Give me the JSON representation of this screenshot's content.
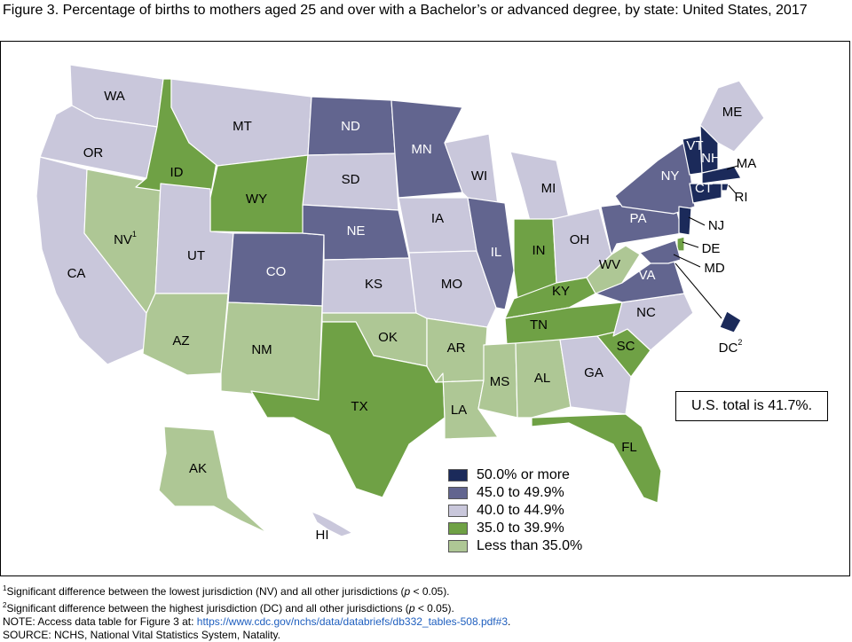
{
  "title": "Figure 3. Percentage of births to mothers aged 25 and over with a Bachelor’s or advanced degree, by state: United States, 2017",
  "colors": {
    "50_plus": "#1b2a5a",
    "45_49": "#62658f",
    "40_44": "#c9c7db",
    "35_39": "#6fa145",
    "lt_35": "#aec795"
  },
  "legend": [
    {
      "key": "50_plus",
      "label": "50.0% or more"
    },
    {
      "key": "45_49",
      "label": "45.0 to 49.9%"
    },
    {
      "key": "40_44",
      "label": "40.0 to 44.9%"
    },
    {
      "key": "35_39",
      "label": "35.0 to 39.9%"
    },
    {
      "key": "lt_35",
      "label": "Less than 35.0%"
    }
  ],
  "total_note": "U.S. total is 41.7%.",
  "states": [
    {
      "abbr": "WA",
      "category": "40_44"
    },
    {
      "abbr": "OR",
      "category": "40_44"
    },
    {
      "abbr": "CA",
      "category": "40_44"
    },
    {
      "abbr": "NV",
      "category": "lt_35",
      "footnote": "1"
    },
    {
      "abbr": "ID",
      "category": "35_39"
    },
    {
      "abbr": "MT",
      "category": "40_44"
    },
    {
      "abbr": "WY",
      "category": "35_39"
    },
    {
      "abbr": "UT",
      "category": "40_44"
    },
    {
      "abbr": "AZ",
      "category": "lt_35"
    },
    {
      "abbr": "CO",
      "category": "45_49"
    },
    {
      "abbr": "NM",
      "category": "lt_35"
    },
    {
      "abbr": "ND",
      "category": "45_49"
    },
    {
      "abbr": "SD",
      "category": "40_44"
    },
    {
      "abbr": "NE",
      "category": "45_49"
    },
    {
      "abbr": "KS",
      "category": "40_44"
    },
    {
      "abbr": "OK",
      "category": "lt_35"
    },
    {
      "abbr": "TX",
      "category": "35_39"
    },
    {
      "abbr": "MN",
      "category": "45_49"
    },
    {
      "abbr": "IA",
      "category": "40_44"
    },
    {
      "abbr": "MO",
      "category": "40_44"
    },
    {
      "abbr": "AR",
      "category": "lt_35"
    },
    {
      "abbr": "LA",
      "category": "lt_35"
    },
    {
      "abbr": "WI",
      "category": "40_44"
    },
    {
      "abbr": "IL",
      "category": "45_49"
    },
    {
      "abbr": "MI",
      "category": "40_44"
    },
    {
      "abbr": "IN",
      "category": "35_39"
    },
    {
      "abbr": "OH",
      "category": "40_44"
    },
    {
      "abbr": "KY",
      "category": "35_39"
    },
    {
      "abbr": "TN",
      "category": "35_39"
    },
    {
      "abbr": "MS",
      "category": "lt_35"
    },
    {
      "abbr": "AL",
      "category": "lt_35"
    },
    {
      "abbr": "GA",
      "category": "40_44"
    },
    {
      "abbr": "FL",
      "category": "35_39"
    },
    {
      "abbr": "SC",
      "category": "35_39"
    },
    {
      "abbr": "NC",
      "category": "40_44"
    },
    {
      "abbr": "VA",
      "category": "45_49"
    },
    {
      "abbr": "WV",
      "category": "lt_35"
    },
    {
      "abbr": "PA",
      "category": "45_49"
    },
    {
      "abbr": "NY",
      "category": "45_49"
    },
    {
      "abbr": "VT",
      "category": "50_plus"
    },
    {
      "abbr": "NH",
      "category": "50_plus"
    },
    {
      "abbr": "ME",
      "category": "40_44"
    },
    {
      "abbr": "MA",
      "category": "50_plus"
    },
    {
      "abbr": "RI",
      "category": "50_plus"
    },
    {
      "abbr": "CT",
      "category": "50_plus"
    },
    {
      "abbr": "NJ",
      "category": "50_plus"
    },
    {
      "abbr": "DE",
      "category": "35_39"
    },
    {
      "abbr": "MD",
      "category": "45_49"
    },
    {
      "abbr": "DC",
      "category": "50_plus",
      "footnote": "2"
    },
    {
      "abbr": "AK",
      "category": "lt_35"
    },
    {
      "abbr": "HI",
      "category": "40_44"
    }
  ],
  "footnotes": {
    "fn1_mark": "1",
    "fn1": "Significant difference between the lowest jurisdiction (NV) and all other jurisdictions (",
    "fn1_p": "p",
    "fn1_end": " < 0.05).",
    "fn2_mark": "2",
    "fn2": "Significant difference between the highest jurisdiction (DC) and all other jurisdictions (",
    "fn2_p": "p",
    "fn2_end": " < 0.05).",
    "note_prefix": "NOTE: Access data table for Figure 3 at: ",
    "note_link": "https://www.cdc.gov/nchs/data/databriefs/db332_tables-508.pdf#3",
    "note_suffix": ".",
    "source": "SOURCE: NCHS, National Vital Statistics System, Natality."
  }
}
